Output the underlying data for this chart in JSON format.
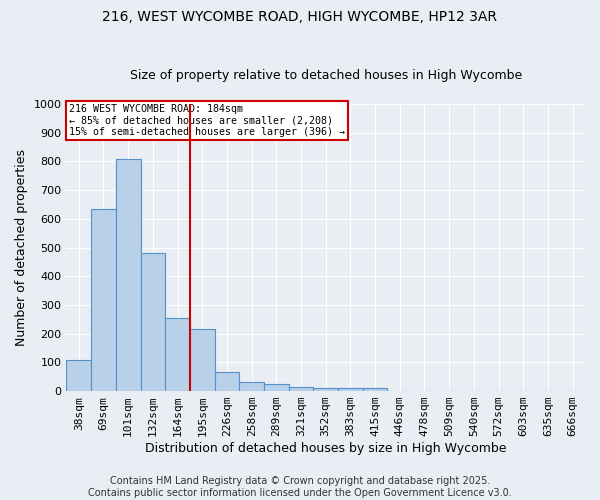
{
  "title1": "216, WEST WYCOMBE ROAD, HIGH WYCOMBE, HP12 3AR",
  "title2": "Size of property relative to detached houses in High Wycombe",
  "xlabel": "Distribution of detached houses by size in High Wycombe",
  "ylabel": "Number of detached properties",
  "categories": [
    "38sqm",
    "69sqm",
    "101sqm",
    "132sqm",
    "164sqm",
    "195sqm",
    "226sqm",
    "258sqm",
    "289sqm",
    "321sqm",
    "352sqm",
    "383sqm",
    "415sqm",
    "446sqm",
    "478sqm",
    "509sqm",
    "540sqm",
    "572sqm",
    "603sqm",
    "635sqm",
    "666sqm"
  ],
  "values": [
    110,
    635,
    810,
    480,
    255,
    215,
    65,
    30,
    25,
    15,
    10,
    10,
    10,
    0,
    0,
    0,
    0,
    0,
    0,
    0,
    0
  ],
  "bar_color": "#b8d0e8",
  "bar_edge_color": "#5590c8",
  "bar_width": 1.0,
  "ylim": [
    0,
    1000
  ],
  "yticks": [
    0,
    100,
    200,
    300,
    400,
    500,
    600,
    700,
    800,
    900,
    1000
  ],
  "red_line_x": 4.5,
  "annotation_text": "216 WEST WYCOMBE ROAD: 184sqm\n← 85% of detached houses are smaller (2,208)\n15% of semi-detached houses are larger (396) →",
  "footer_text": "Contains HM Land Registry data © Crown copyright and database right 2025.\nContains public sector information licensed under the Open Government Licence v3.0.",
  "bg_color": "#e8eef4",
  "grid_color": "#ffffff",
  "title_fontsize": 10,
  "subtitle_fontsize": 9,
  "axis_label_fontsize": 9,
  "tick_fontsize": 8,
  "footer_fontsize": 7
}
